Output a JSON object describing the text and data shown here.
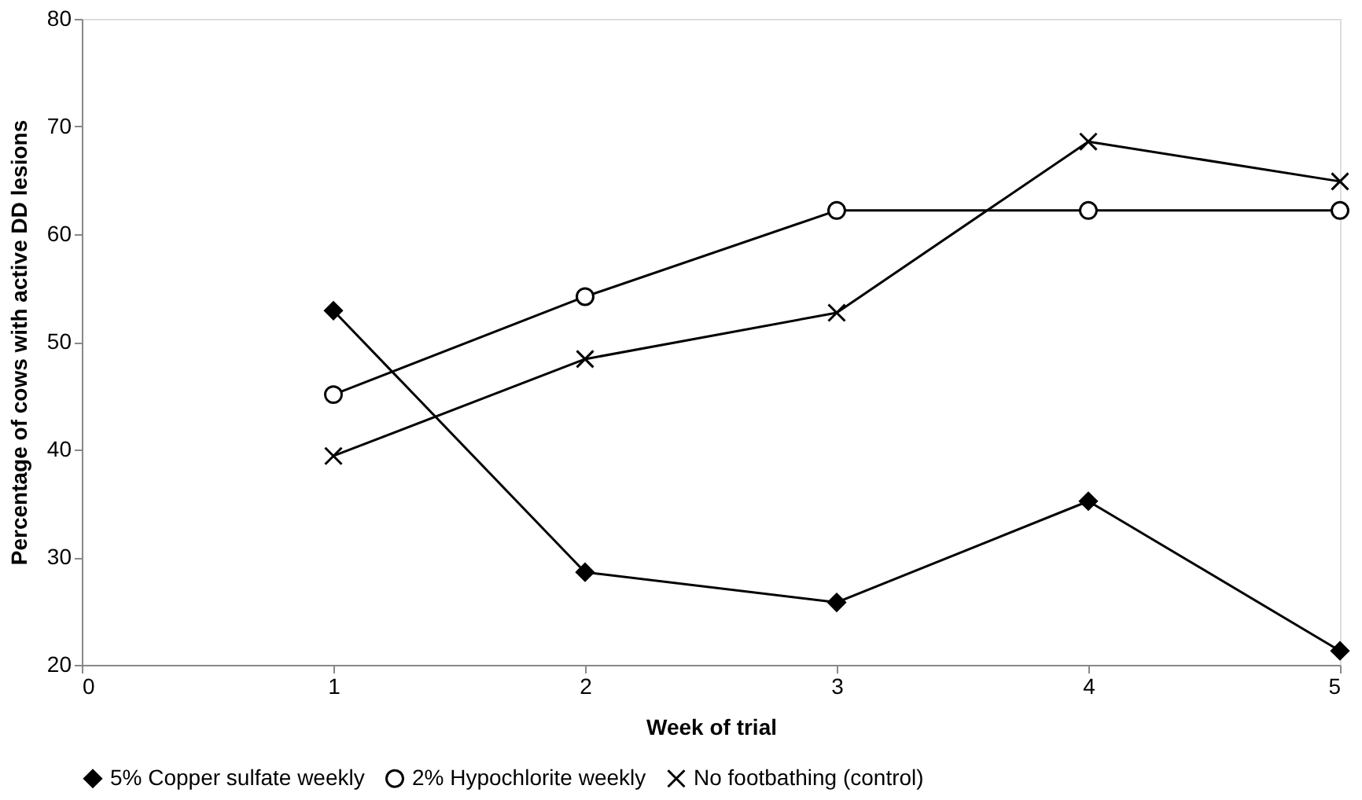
{
  "chart_data": {
    "type": "line",
    "xlabel": "Week of trial",
    "ylabel": "Percentage of cows with active DD lesions",
    "x": [
      1,
      2,
      3,
      4,
      5
    ],
    "xlim": [
      0,
      5
    ],
    "xticks": [
      0,
      1,
      2,
      3,
      4,
      5
    ],
    "ylim": [
      20,
      80
    ],
    "yticks": [
      20,
      30,
      40,
      50,
      60,
      70,
      80
    ],
    "grid": false,
    "legend": "bottom",
    "series": [
      {
        "name": "5% Copper sulfate weekly",
        "color": "#000000",
        "marker": "diamond",
        "values": [
          52.9,
          28.6,
          25.8,
          35.2,
          21.3
        ]
      },
      {
        "name": "2% Hypochlorite weekly",
        "color": "#000000",
        "marker": "circle",
        "values": [
          45.1,
          54.2,
          62.2,
          62.2,
          62.2
        ]
      },
      {
        "name": "No footbathing (control)",
        "color": "#000000",
        "marker": "cross",
        "values": [
          39.4,
          48.4,
          52.7,
          68.6,
          64.9
        ]
      }
    ]
  }
}
